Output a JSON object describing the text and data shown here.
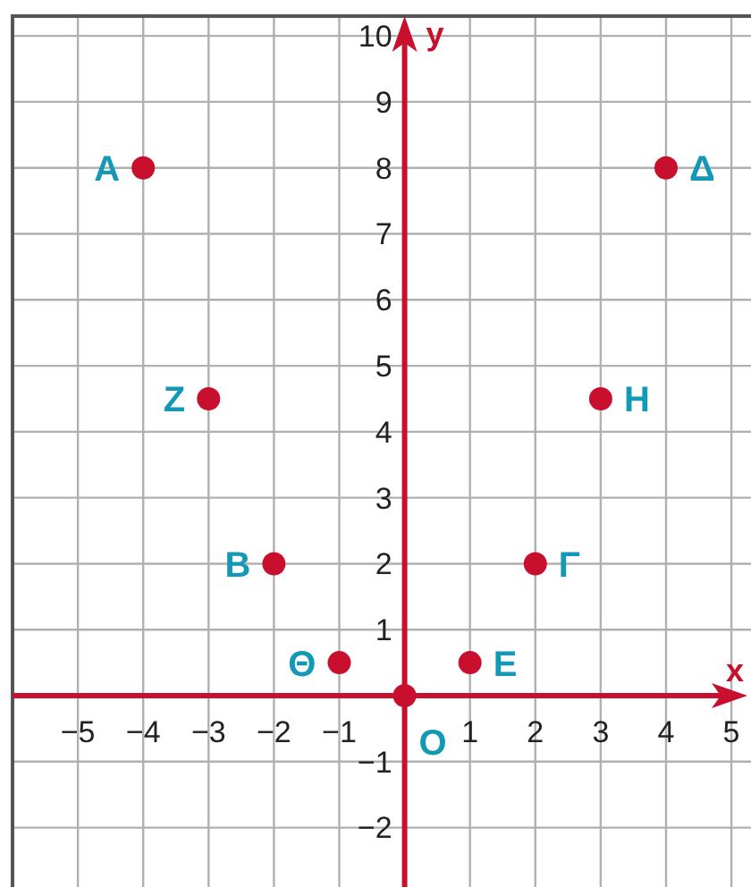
{
  "chart_data": {
    "type": "scatter",
    "xlabel": "x",
    "ylabel": "y",
    "x": [
      -4,
      4,
      -3,
      3,
      -2,
      2,
      -1,
      1,
      0
    ],
    "values": [
      8,
      8,
      4.5,
      4.5,
      2,
      2,
      0.5,
      0.5,
      0
    ],
    "color": "#c8102e",
    "marker": "circle",
    "grid": true,
    "xlim": [
      -6,
      5.3
    ],
    "ylim": [
      -2.9,
      10.3
    ],
    "xticks": [
      {
        "value": -5,
        "label": "−5"
      },
      {
        "value": -4,
        "label": "−4"
      },
      {
        "value": -3,
        "label": "−3"
      },
      {
        "value": -2,
        "label": "−2"
      },
      {
        "value": -1,
        "label": "−1"
      },
      1,
      2,
      3,
      4,
      5
    ],
    "yticks": [
      {
        "value": -2,
        "label": "−2"
      },
      {
        "value": -1,
        "label": "−1"
      },
      1,
      2,
      3,
      4,
      5,
      6,
      7,
      8,
      9,
      10
    ],
    "annotations": [
      {
        "text": "Α",
        "x": -4,
        "y": 8
      },
      {
        "text": "Δ",
        "x": 4,
        "y": 8
      },
      {
        "text": "Ζ",
        "x": -3,
        "y": 4.5
      },
      {
        "text": "Η",
        "x": 3,
        "y": 4.5
      },
      {
        "text": "Β",
        "x": -2,
        "y": 2
      },
      {
        "text": "Γ",
        "x": 2,
        "y": 2
      },
      {
        "text": "Θ",
        "x": -1,
        "y": 0.5
      },
      {
        "text": "Ε",
        "x": 1,
        "y": 0.5
      },
      {
        "text": "Ο",
        "x": 0,
        "y": 0
      }
    ]
  }
}
